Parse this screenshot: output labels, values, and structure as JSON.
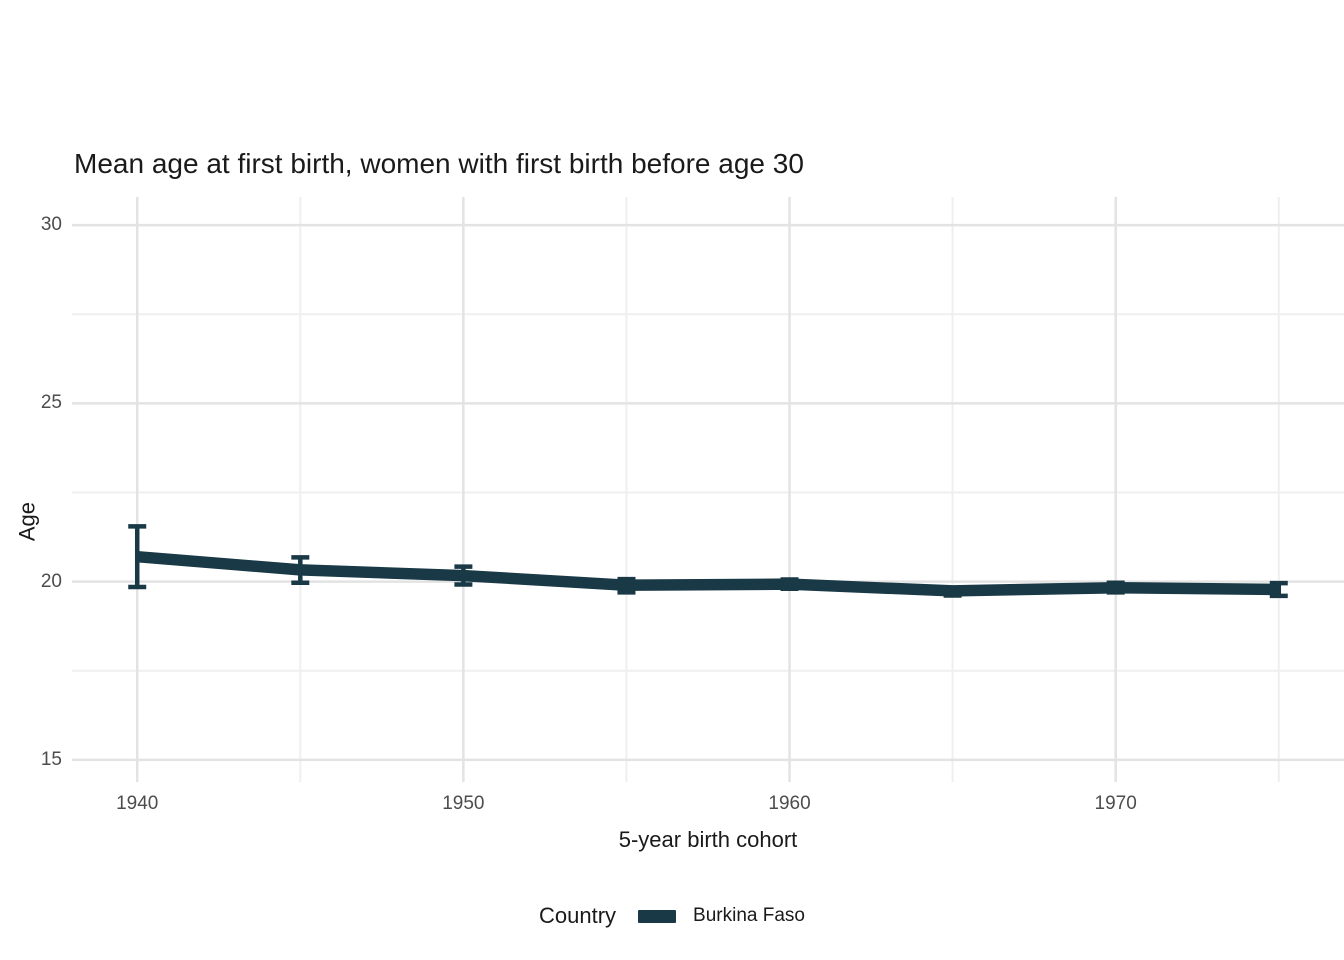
{
  "chart_data": {
    "type": "line",
    "title": "Mean age at first birth, women with first birth before age 30",
    "xlabel": "5-year birth cohort",
    "ylabel": "Age",
    "legend_title": "Country",
    "legend_position": "bottom",
    "grid": true,
    "xlim": [
      1938,
      1977
    ],
    "ylim": [
      14.38,
      30.79
    ],
    "x_major_ticks": [
      1940,
      1950,
      1960,
      1970
    ],
    "x_minor_ticks": [
      1945,
      1955,
      1965,
      1975
    ],
    "y_major_ticks": [
      15,
      20,
      25,
      30
    ],
    "y_minor_ticks": [
      17.5,
      22.5,
      27.5
    ],
    "series": [
      {
        "name": "Burkina Faso",
        "color": "#183945",
        "x": [
          1940,
          1945,
          1950,
          1955,
          1960,
          1965,
          1970,
          1975
        ],
        "mean": [
          20.7,
          20.33,
          20.17,
          19.9,
          19.93,
          19.74,
          19.83,
          19.78
        ],
        "ci_low": [
          19.85,
          19.97,
          19.92,
          19.7,
          19.8,
          19.61,
          19.7,
          19.6
        ],
        "ci_high": [
          21.55,
          20.68,
          20.42,
          20.07,
          20.06,
          19.8,
          19.97,
          19.96
        ]
      }
    ],
    "colors": {
      "grid_major": "#e3e3e3",
      "grid_minor": "#efefef",
      "tick_text": "#4d4d4d",
      "title_text": "#1a1a1a",
      "background": "#ffffff"
    }
  }
}
